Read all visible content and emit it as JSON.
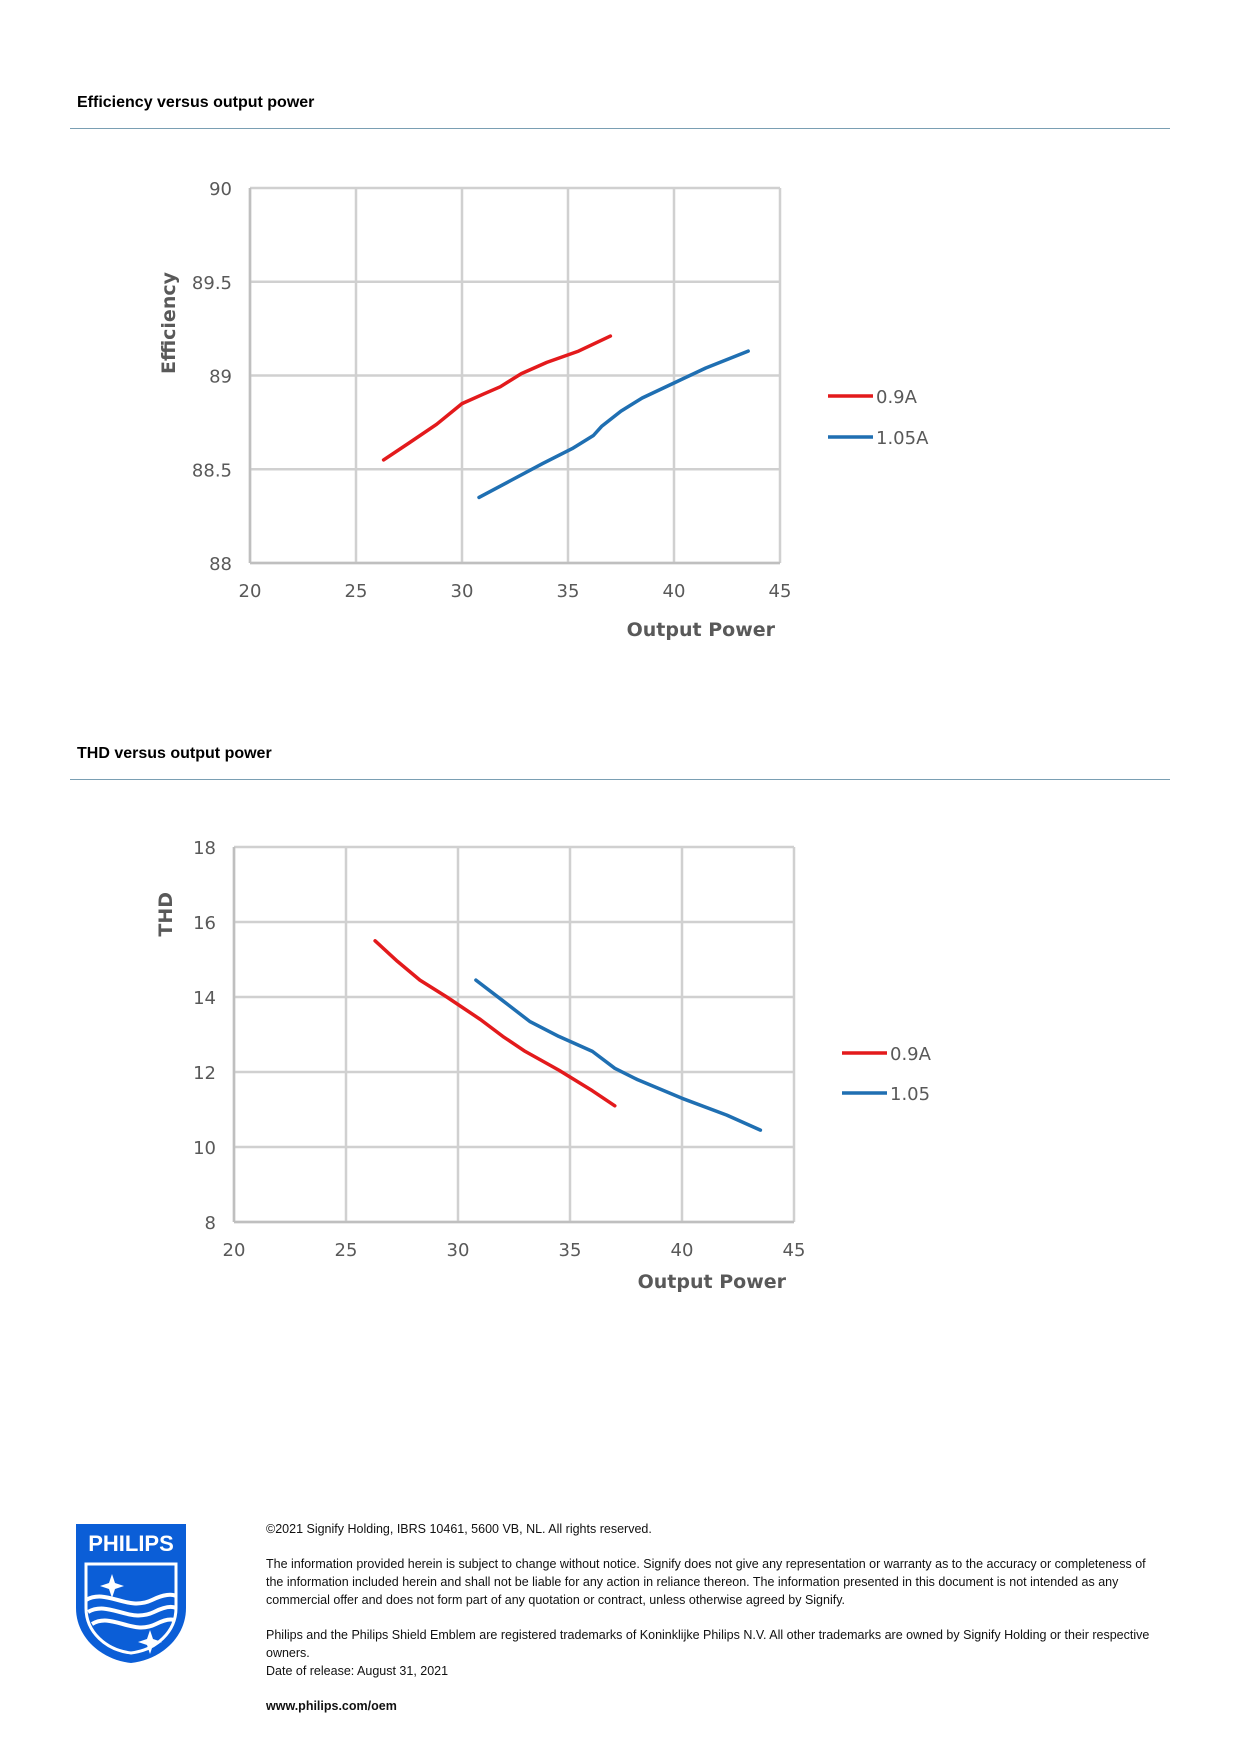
{
  "sections": {
    "efficiency_title": "Efficiency versus output power",
    "thd_title": "THD versus output power"
  },
  "chart_data": [
    {
      "type": "line",
      "xlabel": "Output Power",
      "ylabel": "Efficiency",
      "xlim": [
        20,
        45
      ],
      "ylim": [
        88,
        90
      ],
      "xticks": [
        20,
        25,
        30,
        35,
        40,
        45
      ],
      "yticks": [
        88,
        88.5,
        89,
        89.5,
        90
      ],
      "ytick_labels": [
        "88",
        "88.5",
        "89",
        "89.5",
        "90"
      ],
      "grid": true,
      "legend_position": "right",
      "series": [
        {
          "name": "0.9A",
          "color": "#e31a1c",
          "x": [
            26.3,
            27.5,
            28.8,
            30.0,
            31.0,
            31.8,
            32.8,
            34.0,
            35.5,
            37.0
          ],
          "y": [
            88.55,
            88.64,
            88.74,
            88.85,
            88.9,
            88.94,
            89.01,
            89.07,
            89.13,
            89.21
          ]
        },
        {
          "name": "1.05A",
          "color": "#1f6fb2",
          "x": [
            30.8,
            32.3,
            33.8,
            35.2,
            36.2,
            36.6,
            37.5,
            38.5,
            40.0,
            41.5,
            43.5
          ],
          "y": [
            88.35,
            88.44,
            88.53,
            88.61,
            88.68,
            88.73,
            88.81,
            88.88,
            88.96,
            89.04,
            89.13
          ]
        }
      ]
    },
    {
      "type": "line",
      "xlabel": "Output Power",
      "ylabel": "THD",
      "xlim": [
        20,
        45
      ],
      "ylim": [
        8,
        18
      ],
      "xticks": [
        20,
        25,
        30,
        35,
        40,
        45
      ],
      "yticks": [
        8,
        10,
        12,
        14,
        16,
        18
      ],
      "ytick_labels": [
        "8",
        "10",
        "12",
        "14",
        "16",
        "18"
      ],
      "grid": true,
      "legend_position": "right",
      "series": [
        {
          "name": "0.9A",
          "color": "#e31a1c",
          "x": [
            26.3,
            27.3,
            28.3,
            29.5,
            30.0,
            31.0,
            32.0,
            33.0,
            34.5,
            36.0,
            37.0
          ],
          "y": [
            15.5,
            14.95,
            14.45,
            14.0,
            13.8,
            13.4,
            12.95,
            12.55,
            12.05,
            11.5,
            11.1
          ]
        },
        {
          "name": "1.05",
          "color": "#1f6fb2",
          "x": [
            30.8,
            32.0,
            33.2,
            34.5,
            36.0,
            37.0,
            38.0,
            40.0,
            42.0,
            43.5
          ],
          "y": [
            14.45,
            13.9,
            13.35,
            12.95,
            12.55,
            12.1,
            11.8,
            11.3,
            10.85,
            10.45
          ]
        }
      ]
    }
  ],
  "footer": {
    "copyright": "©2021 Signify Holding, IBRS 10461, 5600 VB, NL. All rights reserved.",
    "disclaimer": "The information provided herein is subject to change without notice. Signify does not give any representation or warranty as to the accuracy or completeness of the information included herein and shall not be liable for any action in reliance thereon. The information presented in this document is not intended as any commercial offer and does not form part of any quotation or contract, unless otherwise agreed by Signify.",
    "trademarks": "Philips and the Philips Shield Emblem are registered trademarks of Koninklijke Philips N.V. All other trademarks are owned by Signify Holding or their respective owners.",
    "release_date": "Date of release: August 31, 2021",
    "website": "www.philips.com/oem"
  },
  "logo": {
    "text": "PHILIPS",
    "color": "#0b5ed7",
    "icon": "philips-shield-logo"
  }
}
